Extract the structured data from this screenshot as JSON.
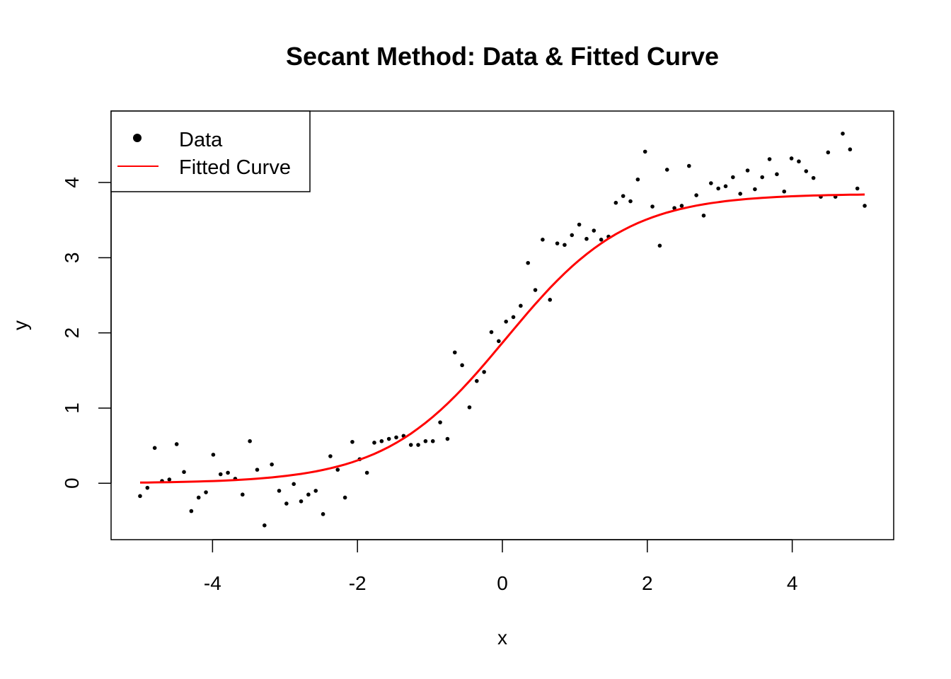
{
  "chart_data": {
    "type": "scatter",
    "title": "Secant Method: Data & Fitted Curve",
    "xlabel": "x",
    "ylabel": "y",
    "xlim": [
      -5.4,
      5.4
    ],
    "ylim": [
      -0.75,
      4.95
    ],
    "xticks": [
      -4,
      -2,
      0,
      2,
      4
    ],
    "yticks": [
      0,
      1,
      2,
      3,
      4
    ],
    "grid": false,
    "legend": {
      "placement": "top-left",
      "entries": [
        {
          "label": "Data",
          "symbol": "point",
          "color": "#000000"
        },
        {
          "label": "Fitted Curve",
          "symbol": "line",
          "color": "#FF0000"
        }
      ]
    },
    "series": [
      {
        "name": "Data",
        "kind": "points",
        "color": "#000000",
        "x_range": [
          -5,
          5
        ],
        "y": [
          -0.17,
          -0.06,
          0.47,
          0.03,
          0.05,
          0.52,
          0.15,
          -0.37,
          -0.19,
          -0.12,
          0.38,
          0.12,
          0.14,
          0.06,
          -0.15,
          0.56,
          0.18,
          -0.56,
          0.25,
          -0.1,
          -0.27,
          -0.01,
          -0.24,
          -0.15,
          -0.1,
          -0.41,
          0.36,
          0.18,
          -0.19,
          0.55,
          0.32,
          0.14,
          0.54,
          0.56,
          0.59,
          0.61,
          0.63,
          0.51,
          0.51,
          0.56,
          0.56,
          0.81,
          0.59,
          1.74,
          1.57,
          1.01,
          1.36,
          1.48,
          2.01,
          1.89,
          2.15,
          2.21,
          2.36,
          2.93,
          2.57,
          3.24,
          2.44,
          3.19,
          3.17,
          3.3,
          3.44,
          3.25,
          3.36,
          3.24,
          3.28,
          3.73,
          3.82,
          3.75,
          4.04,
          4.41,
          3.68,
          3.16,
          4.17,
          3.66,
          3.69,
          4.22,
          3.83,
          3.56,
          3.99,
          3.92,
          3.95,
          4.07,
          3.85,
          4.16,
          3.91,
          4.07,
          4.31,
          4.11,
          3.88,
          4.32,
          4.28,
          4.15,
          4.06,
          3.81,
          4.4,
          3.81,
          4.65,
          4.44,
          3.92,
          3.69
        ]
      },
      {
        "name": "Fitted Curve",
        "kind": "line",
        "color": "#FF0000",
        "model": "logistic",
        "params": {
          "a": 3.85,
          "b": 1.2,
          "c": 0.05
        }
      }
    ]
  }
}
